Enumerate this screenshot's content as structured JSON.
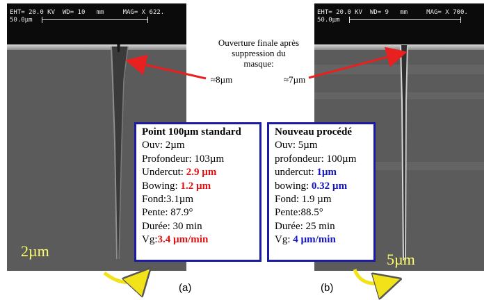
{
  "image_a": {
    "header": {
      "eht": "EHT= 20.0 KV",
      "wd": "WD= 10",
      "wd_unit": "mm",
      "mag": "MAG= X 622.",
      "scale": "50.0µm"
    },
    "label": "2µm"
  },
  "image_b": {
    "header": {
      "eht": "EHT= 20.0 KV",
      "wd": "WD= 9",
      "wd_unit": "mm",
      "mag": "MAG= X 700.",
      "scale": "50.0µm"
    },
    "label": "5µm"
  },
  "note": {
    "line1": "Ouverture finale après",
    "line2": "suppression du",
    "line3": "masque:"
  },
  "approx_a": "≈8µm",
  "approx_b": "≈7µm",
  "box_a": {
    "title": "Point 100µm standard",
    "ouv": "Ouv: 2µm",
    "profondeur": "Profondeur: 103µm",
    "undercut_label": "Undercut: ",
    "undercut_value": "2.9 µm",
    "bowing_label": "Bowing: ",
    "bowing_value": "1.2 µm",
    "fond": "Fond:3.1µm",
    "pente": "Pente: 87.9°",
    "duree": "Durée: 30 min",
    "vg_label": "Vg:",
    "vg_value": "3.4 µm/min"
  },
  "box_b": {
    "title": "Nouveau procédé",
    "ouv": "Ouv: 5µm",
    "profondeur": "profondeur: 100µm",
    "undercut_label": "undercut: ",
    "undercut_value": "1µm",
    "bowing_label": "bowing: ",
    "bowing_value": "0.32 µm",
    "fond": "Fond: 1.9 µm",
    "pente": "Pente:88.5°",
    "duree": "Durée: 25 min",
    "vg_label": "Vg: ",
    "vg_value": "4 µm/min"
  },
  "captions": {
    "a": "(a)",
    "b": "(b)"
  },
  "colors": {
    "highlight_red": "#e01010",
    "highlight_blue": "#1515c0",
    "box_border": "#1a1aa6",
    "arrow": "#e82020",
    "sem_label": "#ffff66",
    "curved_arrow": "#f2e21a"
  }
}
